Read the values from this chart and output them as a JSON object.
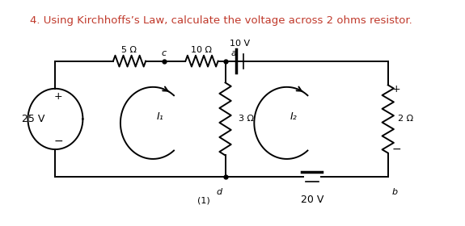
{
  "title_text": "4. Using Kirchhoffs’s Law, calculate the voltage across 2 ohms resistor.",
  "title_color": "#c0392b",
  "title_fontsize": 9.5,
  "bg_color": "#ffffff",
  "labels": {
    "node_a": "a",
    "node_b": "b",
    "node_c": "c",
    "node_d": "d",
    "R5": "5 Ω",
    "R10": "10 Ω",
    "R3": "3 Ω",
    "R2": "2 Ω",
    "V25": "25 V",
    "V10": "10 V",
    "V20": "20 V",
    "I1": "I₁",
    "I2": "I₂"
  },
  "note": "(1)"
}
